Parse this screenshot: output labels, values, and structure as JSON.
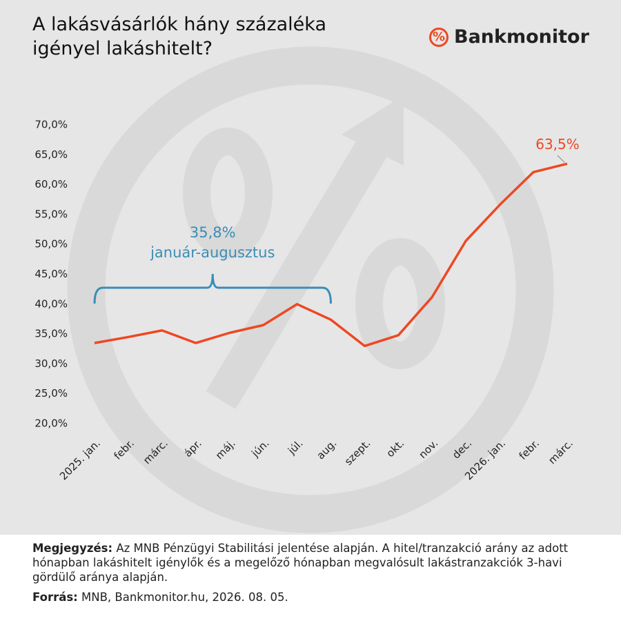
{
  "header": {
    "title": "A lakásvásárlók hány százaléka igényel lakáshitelt?",
    "logo": "Bankmonitor"
  },
  "chart_data": {
    "type": "line",
    "categories": [
      "2025. jan.",
      "febr.",
      "márc.",
      "ápr.",
      "máj.",
      "jún.",
      "júl.",
      "aug.",
      "szept.",
      "okt.",
      "nov.",
      "dec.",
      "2026. jan.",
      "febr.",
      "márc."
    ],
    "series": [
      {
        "name": "Hitel/tranzakció arány",
        "color": "#ee4722",
        "values": [
          33.5,
          34.5,
          35.6,
          33.5,
          35.2,
          36.5,
          40.0,
          37.4,
          33.0,
          34.8,
          41.2,
          50.6,
          56.6,
          62.1,
          63.5
        ],
        "value_labels": [
          null,
          null,
          null,
          null,
          null,
          null,
          null,
          null,
          null,
          null,
          null,
          null,
          null,
          null,
          "63,5%"
        ]
      }
    ],
    "ylim": [
      20,
      70
    ],
    "yticks": [
      {
        "value": 20,
        "label": "20,0%"
      },
      {
        "value": 25,
        "label": "25,0%"
      },
      {
        "value": 30,
        "label": "30,0%"
      },
      {
        "value": 35,
        "label": "35,0%"
      },
      {
        "value": 40,
        "label": "40,0%"
      },
      {
        "value": 45,
        "label": "45,0%"
      },
      {
        "value": 50,
        "label": "50,0%"
      },
      {
        "value": 55,
        "label": "55,0%"
      },
      {
        "value": 60,
        "label": "60,0%"
      },
      {
        "value": 65,
        "label": "65,0%"
      },
      {
        "value": 70,
        "label": "70,0%"
      }
    ],
    "grid": false,
    "bracket_value_label": "35,8%",
    "bracket_label": "január-augusztus",
    "bracket_color": "#3a8db5"
  },
  "footer": {
    "note_label": "Megjegyzés:",
    "note": "Az MNB Pénzügyi Stabilitási jelentése alapján. A hitel/tranzakció arány az adott hónapban lakáshitelt igénylők és a megelőző hónapban megvalósult lakástranzakciók 3-havi gördülő aránya alapján.",
    "source_label": "Forrás:",
    "source": "MNB, Bankmonitor.hu, 2026. 08. 05."
  }
}
